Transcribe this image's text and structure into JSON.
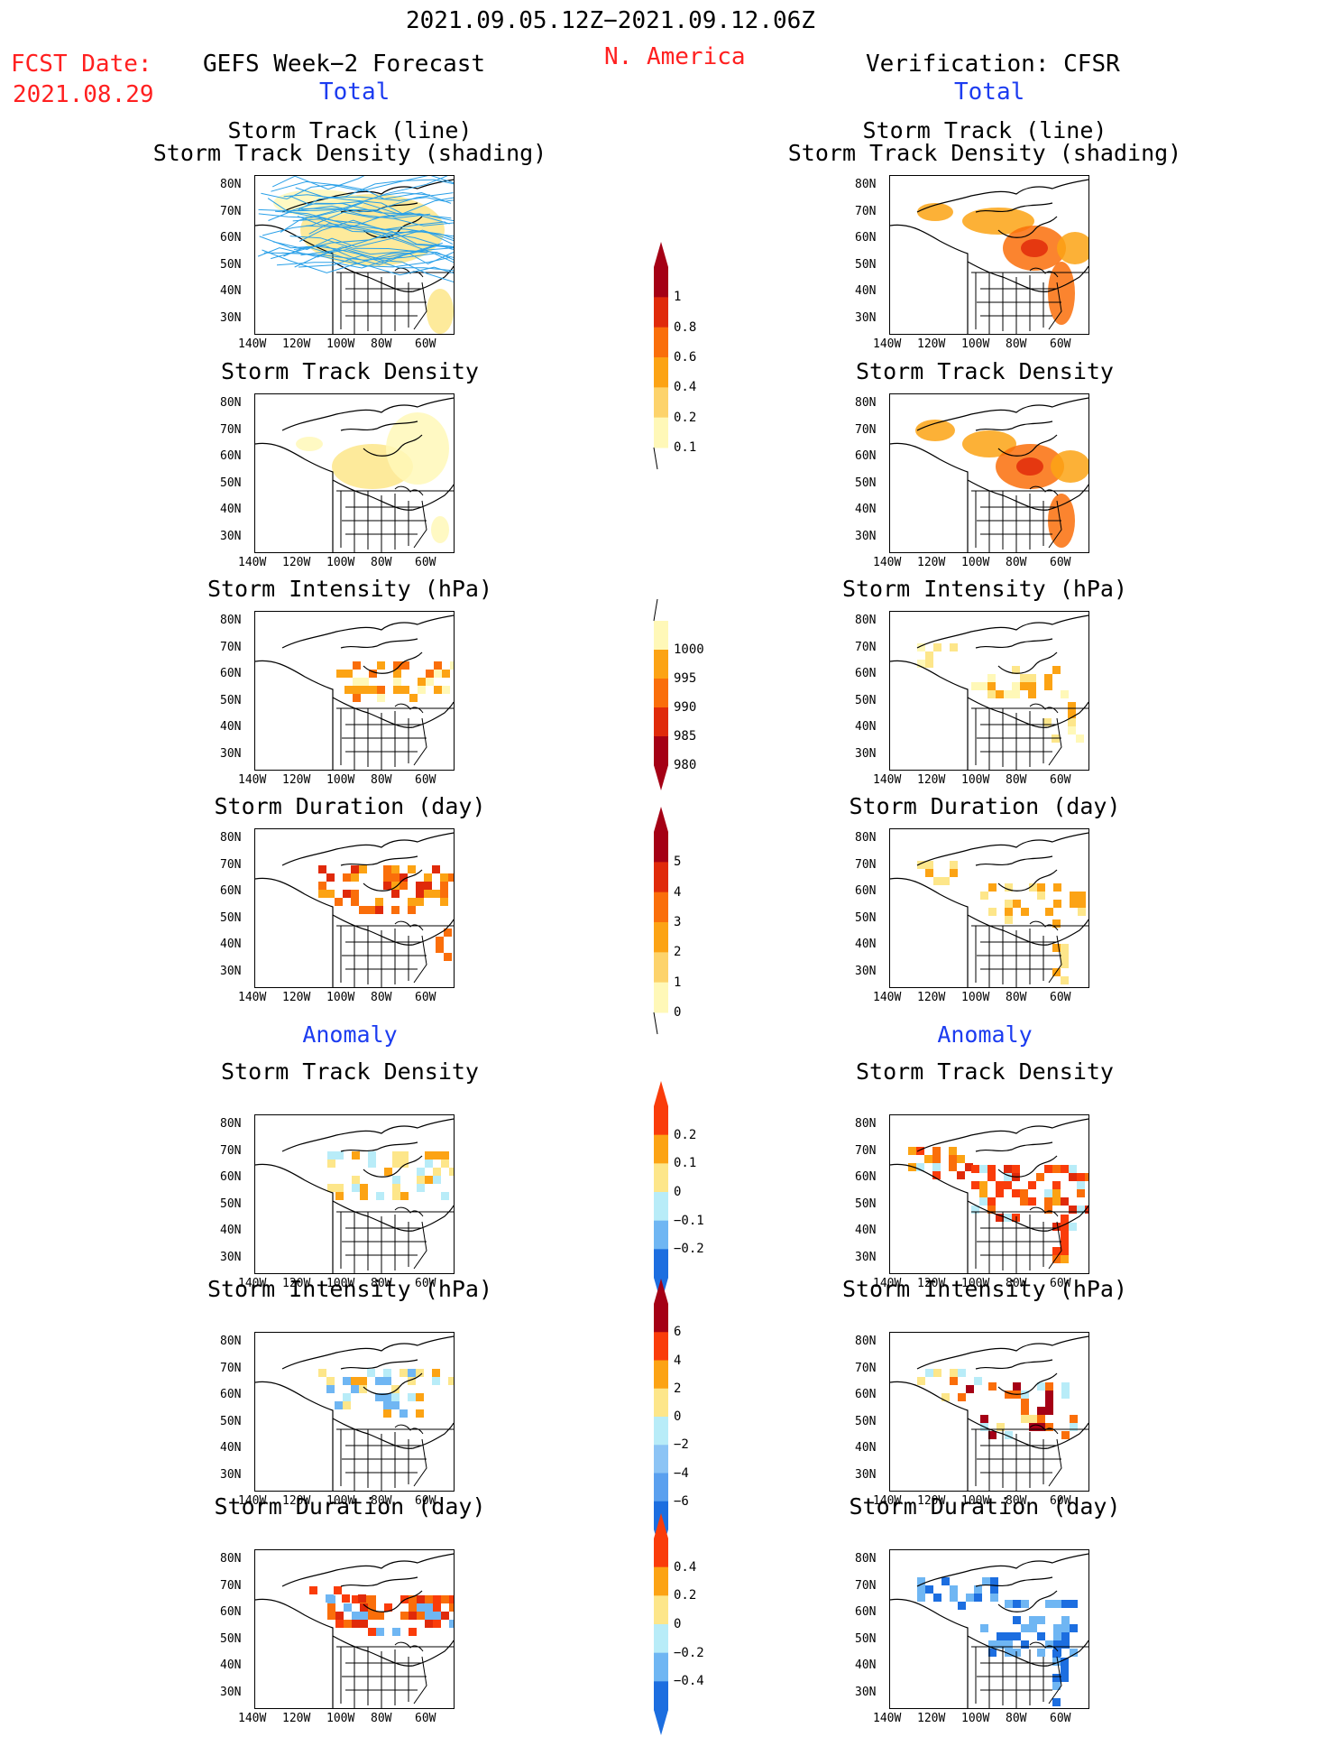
{
  "header": {
    "date_range": "2021.09.05.12Z−2021.09.12.06Z",
    "fcst_label": "FCST Date:",
    "fcst_date": "2021.08.29",
    "left_title": "GEFS Week−2 Forecast",
    "region": "N. America",
    "right_title": "Verification: CFSR",
    "total_left": "Total",
    "total_right": "Total",
    "anomaly_left": "Anomaly",
    "anomaly_right": "Anomaly"
  },
  "axes": {
    "lat_ticks": [
      "80N",
      "70N",
      "60N",
      "50N",
      "40N",
      "30N"
    ],
    "lon_ticks": [
      "140W",
      "120W",
      "100W",
      "80W",
      "60W"
    ]
  },
  "panels": {
    "track_title_1": "Storm Track (line)",
    "track_title_2": "Storm Track Density (shading)",
    "density": "Storm Track Density",
    "intensity": "Storm Intensity (hPa)",
    "duration": "Storm Duration (day)"
  },
  "colorbars": {
    "density": {
      "labels": [
        "1",
        "0.8",
        "0.6",
        "0.4",
        "0.2",
        "0.1"
      ],
      "colors": [
        "#a50015",
        "#e02a0a",
        "#fa6e0a",
        "#fca314",
        "#fdd36b",
        "#fff8b8"
      ]
    },
    "intensity": {
      "labels": [
        "1000",
        "995",
        "990",
        "985",
        "980"
      ],
      "colors": [
        "#fff8b8",
        "#fca314",
        "#fa6e0a",
        "#e02a0a",
        "#a50015"
      ]
    },
    "duration": {
      "labels": [
        "5",
        "4",
        "3",
        "2",
        "1",
        "0"
      ],
      "colors": [
        "#a50015",
        "#e02a0a",
        "#fa6e0a",
        "#fca314",
        "#fdd36b",
        "#fff8b8"
      ]
    },
    "anom_density": {
      "labels": [
        "0.2",
        "0.1",
        "0",
        "−0.1",
        "−0.2"
      ],
      "colors": [
        "#fa3c0a",
        "#fca314",
        "#fde68a",
        "#b8ecf8",
        "#6fb6f3",
        "#1c6ee0"
      ]
    },
    "anom_intensity": {
      "labels": [
        "6",
        "4",
        "2",
        "0",
        "−2",
        "−4",
        "−6"
      ],
      "colors": [
        "#a50015",
        "#fa3c0a",
        "#fca314",
        "#fde68a",
        "#b8ecf8",
        "#8cc4f5",
        "#5aa0ef",
        "#1c6ee0"
      ]
    },
    "anom_duration": {
      "labels": [
        "0.4",
        "0.2",
        "0",
        "−0.2",
        "−0.4"
      ],
      "colors": [
        "#fa3c0a",
        "#fca314",
        "#fde68a",
        "#b8ecf8",
        "#6fb6f3",
        "#1c6ee0"
      ]
    }
  }
}
